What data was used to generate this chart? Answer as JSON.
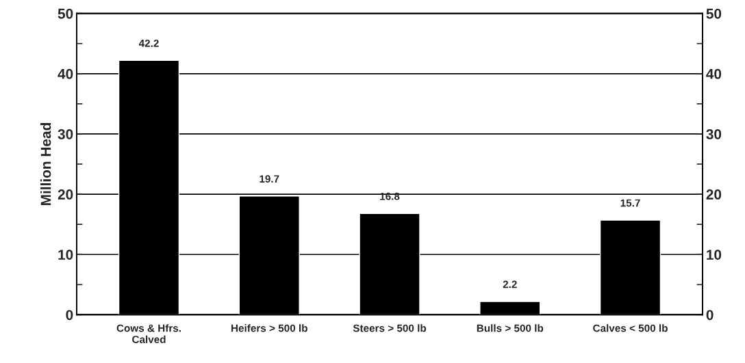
{
  "chart_data": {
    "type": "bar",
    "ylabel": "Million Head",
    "categories": [
      "Cows & Hfrs.\nCalved",
      "Heifers > 500 lb",
      "Steers > 500 lb",
      "Bulls > 500 lb",
      "Calves < 500 lb"
    ],
    "values": [
      42.2,
      19.7,
      16.8,
      2.2,
      15.7
    ],
    "color": "#000000",
    "data_labels": true,
    "ylim": [
      0,
      50
    ],
    "yticks": [
      0,
      {
        "value": 5,
        "label": null
      },
      10,
      {
        "value": 15,
        "label": null
      },
      20,
      {
        "value": 25,
        "label": null
      },
      30,
      {
        "value": 35,
        "label": null
      },
      40,
      {
        "value": 45,
        "label": null
      },
      50
    ],
    "y2lim": [
      0,
      50
    ],
    "y2ticks": [
      0,
      {
        "value": 5,
        "label": null
      },
      10,
      {
        "value": 15,
        "label": null
      },
      20,
      {
        "value": 25,
        "label": null
      },
      30,
      {
        "value": 35,
        "label": null
      },
      40,
      {
        "value": 45,
        "label": null
      },
      50
    ],
    "grid": "y",
    "legend": false
  }
}
